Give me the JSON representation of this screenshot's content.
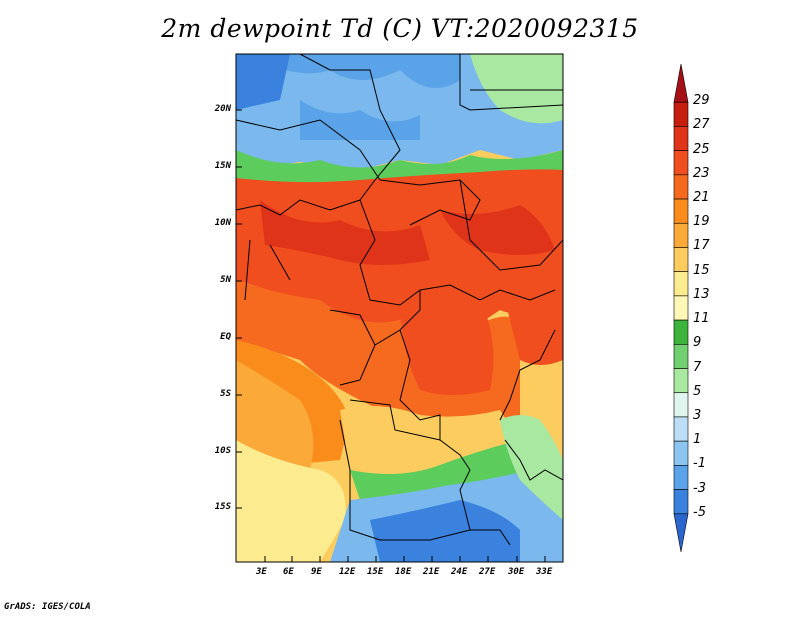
{
  "title": "2m dewpoint Td (C) VT:2020092315",
  "footer": "GrADS: IGES/COLA",
  "lat_labels": [
    "20N",
    "15N",
    "10N",
    "5N",
    "EQ",
    "5S",
    "10S",
    "15S"
  ],
  "lon_labels": [
    "3E",
    "6E",
    "9E",
    "12E",
    "15E",
    "18E",
    "21E",
    "24E",
    "27E",
    "30E",
    "33E"
  ],
  "colorbar": {
    "labels": [
      "29",
      "27",
      "25",
      "23",
      "21",
      "19",
      "17",
      "15",
      "13",
      "11",
      "9",
      "7",
      "5",
      "3",
      "1",
      "-1",
      "-3",
      "-5"
    ],
    "colors": [
      "#a50f15",
      "#c81e10",
      "#e0341a",
      "#f04e1f",
      "#f56a1e",
      "#fa8c1c",
      "#fbaa3a",
      "#fccd5e",
      "#fdeb8f",
      "#fdf7b8",
      "#3cb43c",
      "#72d072",
      "#a8e8a0",
      "#e0f5ee",
      "#bcdff7",
      "#8cc6f0",
      "#5aa3e8",
      "#3a82dd",
      "#2b66cf"
    ]
  },
  "colors": {
    "hot": "#f05a1e",
    "warm": "#fa8c1c",
    "mild": "#fccd5e",
    "pale": "#fdeb8f",
    "green": "#5ccc5c",
    "cyan": "#e0f5ee",
    "blue": "#7ab8ee",
    "deepblue": "#3a82dd"
  }
}
